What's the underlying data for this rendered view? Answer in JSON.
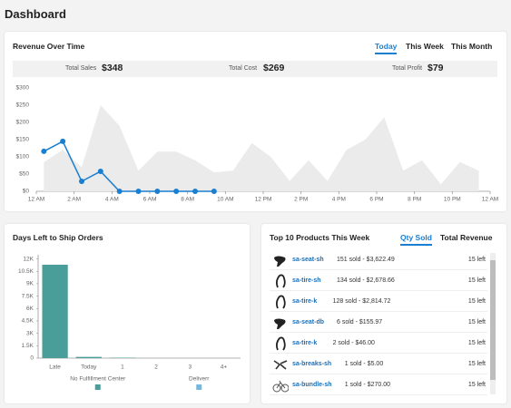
{
  "header": {
    "title": "Dashboard"
  },
  "revenue": {
    "title": "Revenue Over Time",
    "tabs": [
      "Today",
      "This Week",
      "This Month"
    ],
    "summary": [
      {
        "label": "Total Sales",
        "value": "$348"
      },
      {
        "label": "Total Cost",
        "value": "$269"
      },
      {
        "label": "Total Profit",
        "value": "$79"
      }
    ]
  },
  "chart_data": [
    {
      "type": "line",
      "xlim": [
        0,
        24
      ],
      "xticks": [
        {
          "value": 0,
          "label": "12 AM"
        },
        {
          "value": 2,
          "label": "2 AM"
        },
        {
          "value": 4,
          "label": "4 AM"
        },
        {
          "value": 6,
          "label": "6 AM"
        },
        {
          "value": 8,
          "label": "8 AM"
        },
        {
          "value": 10,
          "label": "10 AM"
        },
        {
          "value": 12,
          "label": "12 PM"
        },
        {
          "value": 14,
          "label": "2 PM"
        },
        {
          "value": 16,
          "label": "4 PM"
        },
        {
          "value": 18,
          "label": "6 PM"
        },
        {
          "value": 20,
          "label": "8 PM"
        },
        {
          "value": 22,
          "label": "10 PM"
        },
        {
          "value": 24,
          "label": "12 AM"
        }
      ],
      "ylim": [
        0,
        300
      ],
      "yticks": [
        {
          "value": 0,
          "label": "$0"
        },
        {
          "value": 50,
          "label": "$50"
        },
        {
          "value": 100,
          "label": "$100"
        },
        {
          "value": 150,
          "label": "$150"
        },
        {
          "value": 200,
          "label": "$200"
        },
        {
          "value": 250,
          "label": "$250"
        },
        {
          "value": 300,
          "label": "$300"
        }
      ],
      "series": [
        {
          "style": "area",
          "color": "#ebebeb",
          "x": [
            0.4,
            1.4,
            2.4,
            3.4,
            4.4,
            5.4,
            6.4,
            7.4,
            8.4,
            9.4,
            10.4,
            11.4,
            12.4,
            13.4,
            14.4,
            15.4,
            16.4,
            17.4,
            18.4,
            19.4,
            20.4,
            21.4,
            22.4,
            23.4
          ],
          "values": [
            85,
            120,
            70,
            250,
            190,
            60,
            115,
            115,
            90,
            55,
            60,
            140,
            100,
            30,
            90,
            30,
            120,
            150,
            215,
            60,
            90,
            20,
            85,
            60
          ]
        },
        {
          "style": "line",
          "color": "#1a7fd1",
          "x": [
            0.4,
            1.4,
            2.4,
            3.4,
            4.4,
            5.4,
            6.4,
            7.4,
            8.4,
            9.4
          ],
          "values": [
            116,
            145,
            29,
            58,
            0,
            0,
            0,
            0,
            0,
            0
          ]
        }
      ]
    },
    {
      "type": "bar",
      "title": "Days Left to Ship Orders",
      "categories": [
        "Late",
        "Today",
        "1",
        "2",
        "3",
        "4+"
      ],
      "ylim": [
        0,
        12500
      ],
      "yticks": [
        0,
        {
          "value": 1500,
          "label": "1.5K"
        },
        {
          "value": 3000,
          "label": "3K"
        },
        {
          "value": 4500,
          "label": "4.5K"
        },
        {
          "value": 6000,
          "label": "6K"
        },
        {
          "value": 7500,
          "label": "7.5K"
        },
        {
          "value": 9000,
          "label": "9K"
        },
        {
          "value": 10500,
          "label": "10.5K"
        },
        {
          "value": 12000,
          "label": "12K"
        }
      ],
      "series": [
        {
          "name": "No Fulfillment Center",
          "color": "#4a9e9a",
          "values": [
            11300,
            150,
            50,
            0,
            0,
            0
          ]
        },
        {
          "name": "Deliverr",
          "color": "#74b8dc",
          "values": [
            0,
            0,
            0,
            0,
            0,
            0
          ]
        }
      ]
    }
  ],
  "products": {
    "title": "Top 10 Products This Week",
    "tabs": [
      "Qty Sold",
      "Total Revenue"
    ],
    "rows": [
      {
        "name": "sa-seat-sh",
        "detail": "151 sold - $3,622.49",
        "left": "15 left"
      },
      {
        "name": "sa-tire-sh",
        "detail": "134 sold - $2,678.66",
        "left": "15 left"
      },
      {
        "name": "sa-tire-k",
        "detail": "128 sold - $2,814.72",
        "left": "15 left"
      },
      {
        "name": "sa-seat-db",
        "detail": "6 sold - $155.97",
        "left": "15 left"
      },
      {
        "name": "sa-tire-k",
        "detail": "2 sold - $46.00",
        "left": "15 left"
      },
      {
        "name": "sa-breaks-sh",
        "detail": "1 sold - $5.00",
        "left": "15 left"
      },
      {
        "name": "sa-bundle-sh",
        "detail": "1 sold - $270.00",
        "left": "15 left"
      }
    ]
  }
}
